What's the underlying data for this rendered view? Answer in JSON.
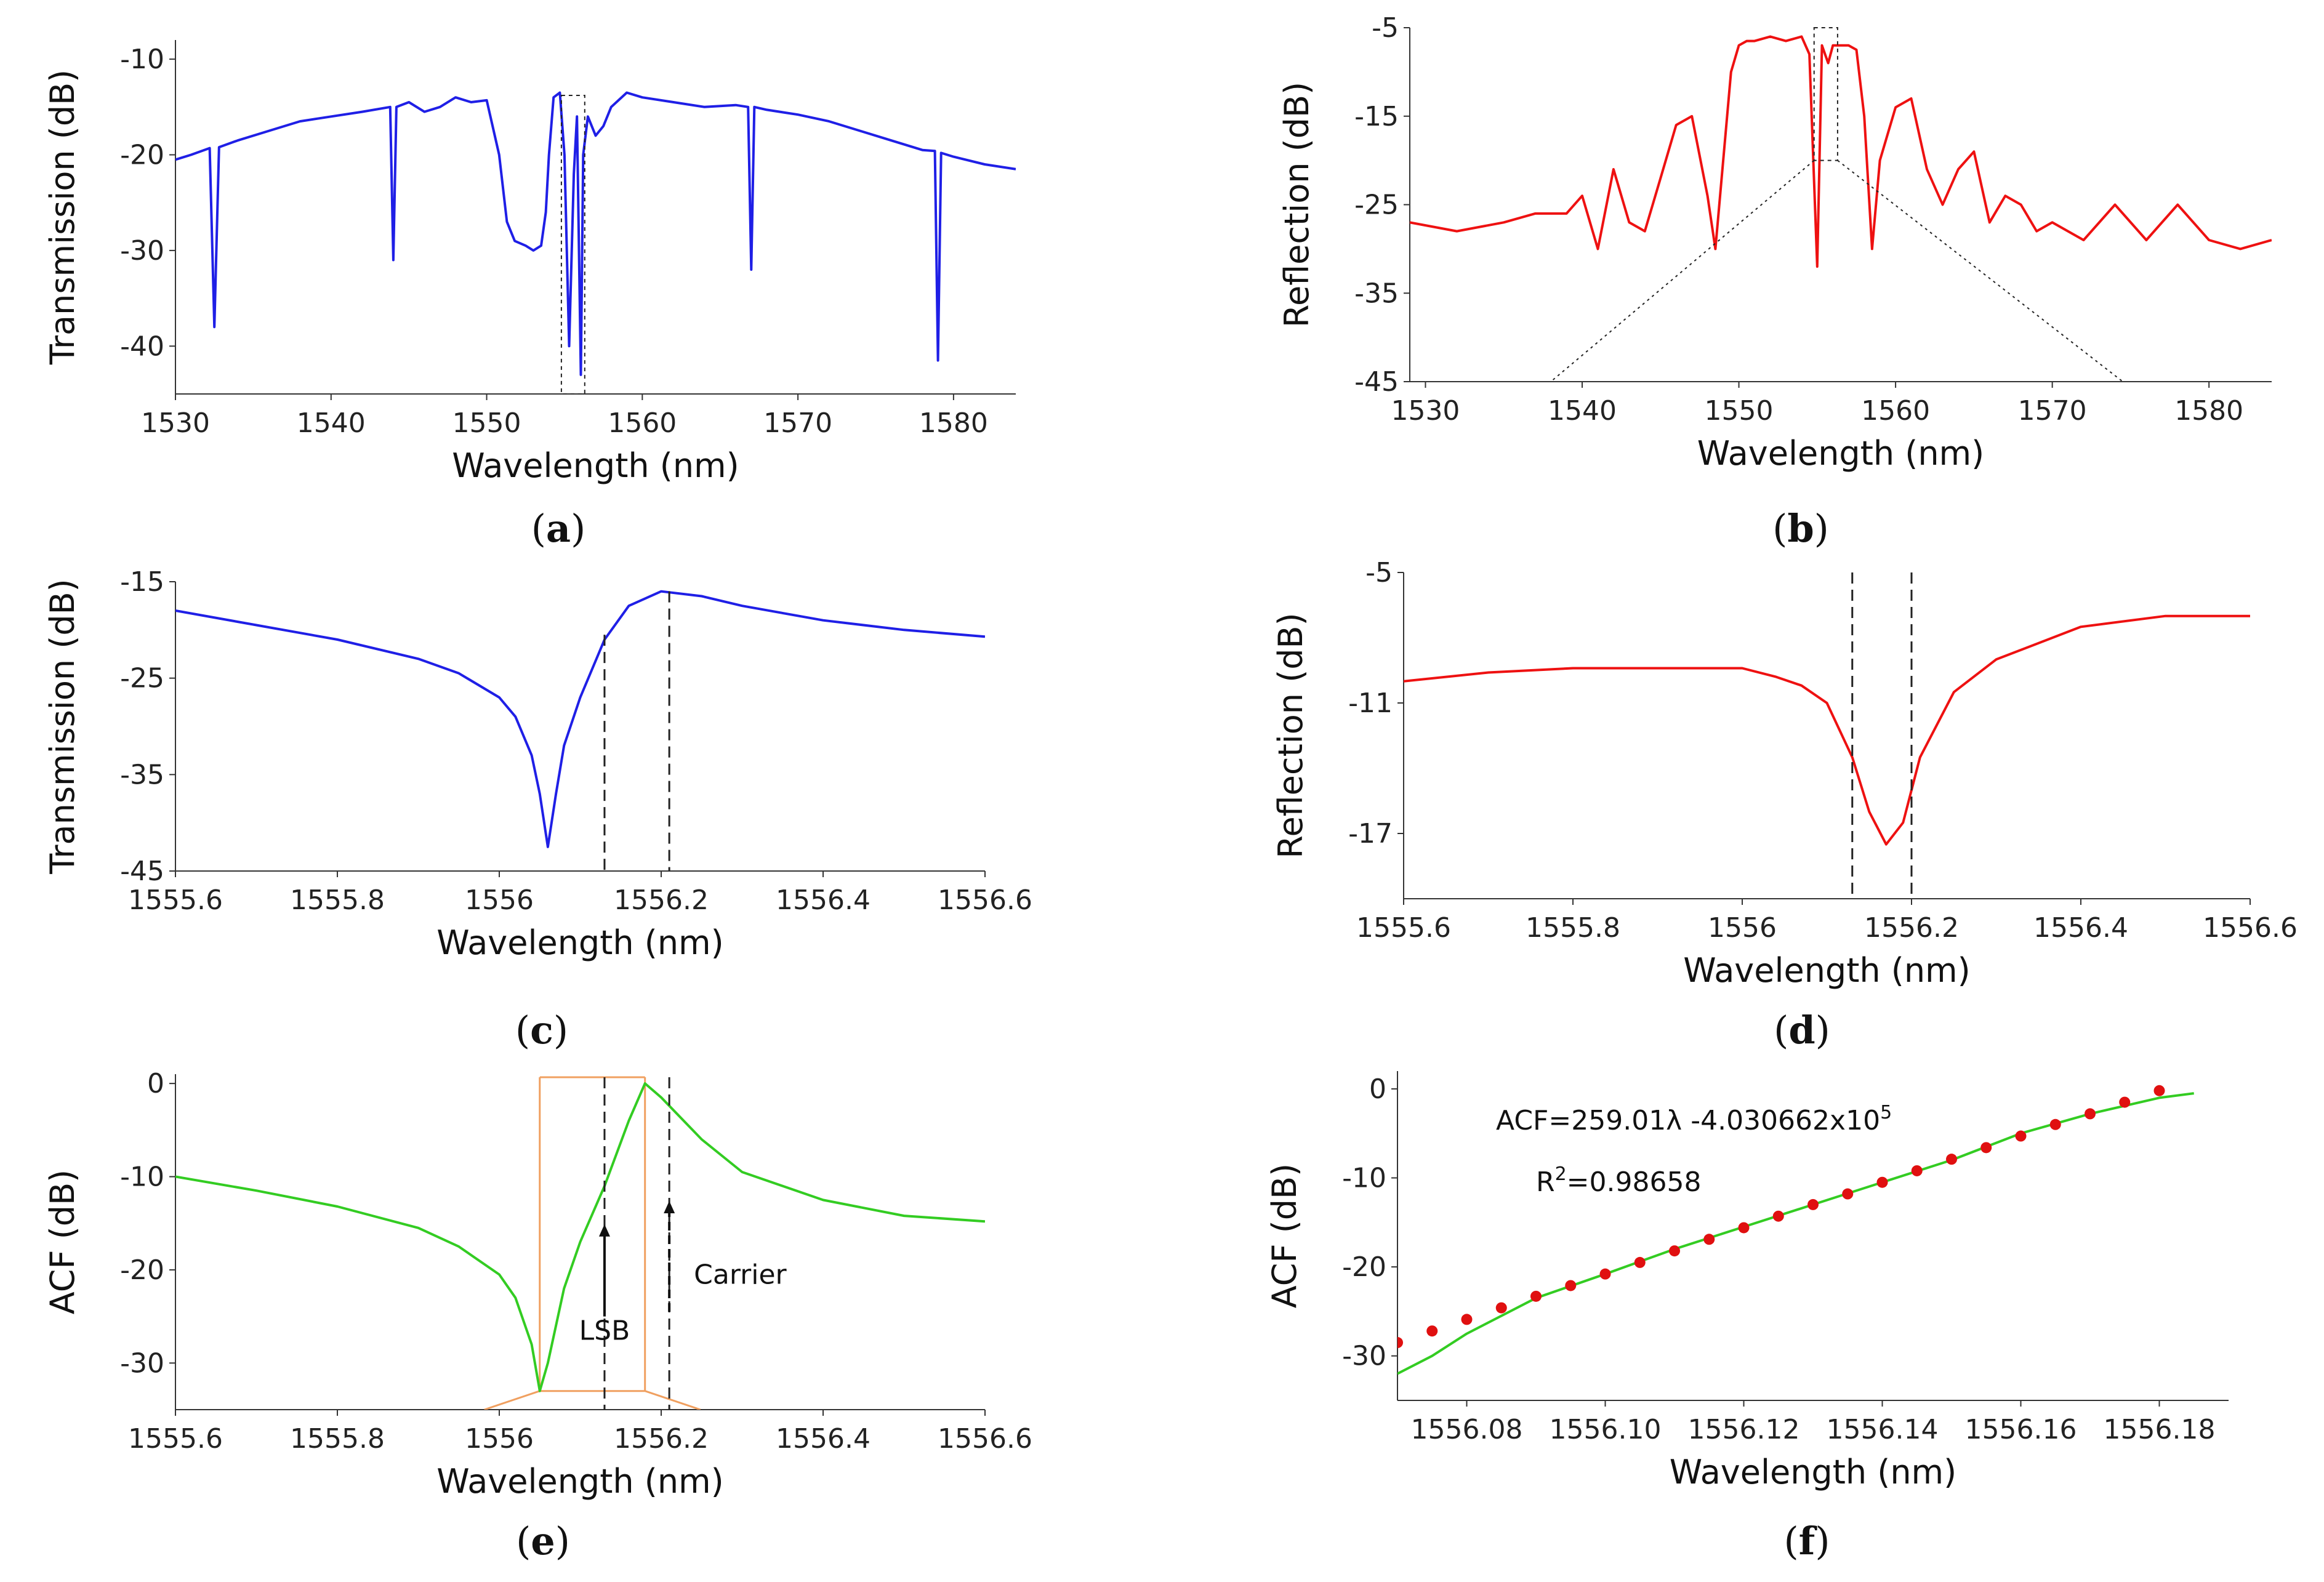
{
  "figure": {
    "colors": {
      "blue": "#1f1fe6",
      "red": "#ee1111",
      "green": "#33cc22",
      "orange": "#f0a060",
      "fitDot": "#e01010"
    }
  },
  "chart_data": [
    {
      "id": "a",
      "type": "line",
      "caption": "a",
      "xlabel": "Wavelength (nm)",
      "ylabel": "Transmission (dB)",
      "xlim": [
        1530,
        1584
      ],
      "ylim": [
        -45,
        -8
      ],
      "xticks": [
        1530,
        1540,
        1550,
        1560,
        1570,
        1580
      ],
      "yticks": [
        -10,
        -20,
        -30,
        -40
      ],
      "color": "blue",
      "series": [
        {
          "name": "Transmission",
          "x": [
            1530,
            1531,
            1532.2,
            1532.5,
            1532.8,
            1534,
            1536,
            1538,
            1540,
            1542,
            1543.8,
            1544,
            1544.2,
            1545,
            1546,
            1547,
            1548,
            1549,
            1550,
            1550.8,
            1551.3,
            1551.8,
            1552.5,
            1553,
            1553.5,
            1553.8,
            1554,
            1554.3,
            1554.7,
            1555,
            1555.3,
            1555.6,
            1555.8,
            1556.05,
            1556.2,
            1556.5,
            1557,
            1557.5,
            1558,
            1559,
            1560,
            1562,
            1564,
            1566,
            1566.8,
            1567,
            1567.2,
            1568,
            1570,
            1572,
            1574,
            1576,
            1578,
            1578.8,
            1579,
            1579.2,
            1580,
            1582,
            1584
          ],
          "y": [
            -20.5,
            -20,
            -19.3,
            -38,
            -19.2,
            -18.5,
            -17.5,
            -16.5,
            -16,
            -15.5,
            -15,
            -31,
            -15,
            -14.5,
            -15.5,
            -15,
            -14,
            -14.5,
            -14.3,
            -20,
            -27,
            -29,
            -29.5,
            -30,
            -29.5,
            -26,
            -20,
            -14,
            -13.5,
            -20,
            -40,
            -22,
            -16,
            -43,
            -20,
            -16,
            -18,
            -17,
            -15,
            -13.5,
            -14,
            -14.5,
            -15,
            -14.8,
            -15,
            -32,
            -15,
            -15.3,
            -15.8,
            -16.5,
            -17.5,
            -18.5,
            -19.5,
            -19.6,
            -41.5,
            -19.8,
            -20.2,
            -21,
            -21.5
          ]
        }
      ],
      "annotations": {
        "zoomBox": [
          1554.8,
          1556.3
        ]
      }
    },
    {
      "id": "b",
      "type": "line",
      "caption": "b",
      "xlabel": "Wavelength (nm)",
      "ylabel": "Reflection (dB)",
      "xlim": [
        1529,
        1584
      ],
      "ylim": [
        -45,
        -5
      ],
      "xticks": [
        1530,
        1540,
        1550,
        1560,
        1570,
        1580
      ],
      "yticks": [
        -5,
        -15,
        -25,
        -35,
        -45
      ],
      "color": "red",
      "series": [
        {
          "name": "Reflection",
          "x": [
            1529,
            1532,
            1535,
            1537,
            1539,
            1540,
            1541,
            1542,
            1543,
            1544,
            1545,
            1546,
            1547,
            1548,
            1548.5,
            1549,
            1549.5,
            1550,
            1550.5,
            1551,
            1552,
            1553,
            1554,
            1554.5,
            1555,
            1555.3,
            1555.7,
            1556,
            1557,
            1557.5,
            1558,
            1558.5,
            1559,
            1560,
            1561,
            1562,
            1563,
            1564,
            1565,
            1566,
            1567,
            1568,
            1569,
            1570,
            1572,
            1574,
            1576,
            1578,
            1580,
            1582,
            1584
          ],
          "y": [
            -27,
            -28,
            -27,
            -26,
            -26,
            -24,
            -30,
            -21,
            -27,
            -28,
            -22,
            -16,
            -15,
            -24,
            -30,
            -20,
            -10,
            -7,
            -6.5,
            -6.5,
            -6,
            -6.5,
            -6,
            -8,
            -32,
            -7,
            -9,
            -7,
            -7,
            -7.5,
            -15,
            -30,
            -20,
            -14,
            -13,
            -21,
            -25,
            -21,
            -19,
            -27,
            -24,
            -25,
            -28,
            -27,
            -29,
            -25,
            -29,
            -25,
            -29,
            -30,
            -29
          ]
        }
      ],
      "annotations": {
        "zoomBox": [
          1554.8,
          1556.3
        ]
      }
    },
    {
      "id": "c",
      "type": "line",
      "caption": "c",
      "xlabel": "Wavelength (nm)",
      "ylabel": "Transmission (dB)",
      "xlim": [
        1555.6,
        1556.6
      ],
      "ylim": [
        -45,
        -15
      ],
      "xticks": [
        1555.6,
        1555.8,
        1556.0,
        1556.2,
        1556.4,
        1556.6
      ],
      "yticks": [
        -15,
        -25,
        -35,
        -45
      ],
      "color": "blue",
      "series": [
        {
          "name": "Transmission",
          "x": [
            1555.6,
            1555.7,
            1555.8,
            1555.9,
            1555.95,
            1556.0,
            1556.02,
            1556.04,
            1556.05,
            1556.06,
            1556.07,
            1556.08,
            1556.1,
            1556.13,
            1556.16,
            1556.2,
            1556.25,
            1556.3,
            1556.4,
            1556.5,
            1556.6
          ],
          "y": [
            -18,
            -19.5,
            -21,
            -23,
            -24.5,
            -27,
            -29,
            -33,
            -37,
            -42.5,
            -37,
            -32,
            -27,
            -21,
            -17.5,
            -16,
            -16.5,
            -17.5,
            -19,
            -20,
            -20.7
          ]
        }
      ],
      "annotations": {
        "dashed": [
          1556.13,
          1556.21
        ]
      }
    },
    {
      "id": "d",
      "type": "line",
      "caption": "d",
      "xlabel": "Wavelength (nm)",
      "ylabel": "Reflection (dB)",
      "xlim": [
        1555.6,
        1556.6
      ],
      "ylim": [
        -20,
        -5
      ],
      "xticks": [
        1555.6,
        1555.8,
        1556.0,
        1556.2,
        1556.4,
        1556.6
      ],
      "yticks": [
        -5,
        -11,
        -17
      ],
      "color": "red",
      "series": [
        {
          "name": "Reflection",
          "x": [
            1555.6,
            1555.7,
            1555.8,
            1555.9,
            1556.0,
            1556.04,
            1556.07,
            1556.1,
            1556.13,
            1556.15,
            1556.17,
            1556.19,
            1556.21,
            1556.25,
            1556.3,
            1556.4,
            1556.5,
            1556.6
          ],
          "y": [
            -10,
            -9.6,
            -9.4,
            -9.4,
            -9.4,
            -9.8,
            -10.2,
            -11,
            -13.5,
            -16,
            -17.5,
            -16.5,
            -13.5,
            -10.5,
            -9,
            -7.5,
            -7,
            -7
          ]
        }
      ],
      "annotations": {
        "dashed": [
          1556.13,
          1556.2
        ]
      }
    },
    {
      "id": "e",
      "type": "line",
      "caption": "e",
      "xlabel": "Wavelength (nm)",
      "ylabel": "ACF (dB)",
      "xlim": [
        1555.6,
        1556.6
      ],
      "ylim": [
        -35,
        1
      ],
      "xticks": [
        1555.6,
        1555.8,
        1556.0,
        1556.2,
        1556.4,
        1556.6
      ],
      "yticks": [
        0,
        -10,
        -20,
        -30
      ],
      "color": "green",
      "series": [
        {
          "name": "ACF",
          "x": [
            1555.6,
            1555.7,
            1555.8,
            1555.9,
            1555.95,
            1556.0,
            1556.02,
            1556.04,
            1556.05,
            1556.06,
            1556.08,
            1556.1,
            1556.13,
            1556.16,
            1556.18,
            1556.2,
            1556.25,
            1556.3,
            1556.4,
            1556.5,
            1556.6
          ],
          "y": [
            -10,
            -11.5,
            -13.2,
            -15.5,
            -17.5,
            -20.5,
            -23,
            -28,
            -33,
            -30,
            -22,
            -17,
            -11,
            -4,
            0,
            -1.5,
            -6,
            -9.5,
            -12.5,
            -14.2,
            -14.8
          ]
        }
      ],
      "annotations": {
        "dashed": [
          1556.13,
          1556.21
        ],
        "window": [
          1556.05,
          1556.18
        ],
        "lsb_label": "LSB",
        "carrier_label": "Carrier"
      }
    },
    {
      "id": "f",
      "type": "scatter",
      "caption": "f",
      "xlabel": "Wavelength (nm)",
      "ylabel": "ACF (dB)",
      "xlim": [
        1556.07,
        1556.19
      ],
      "ylim": [
        -35,
        2
      ],
      "xticks": [
        1556.08,
        1556.1,
        1556.12,
        1556.14,
        1556.16,
        1556.18
      ],
      "xtick_labels": [
        "1556.08",
        "1556.10",
        "1556.12",
        "1556.14",
        "1556.16",
        "1556.18"
      ],
      "yticks": [
        0,
        -10,
        -20,
        -30
      ],
      "color": "green",
      "series": [
        {
          "name": "ACF",
          "x": [
            1556.07,
            1556.075,
            1556.08,
            1556.085,
            1556.09,
            1556.1,
            1556.11,
            1556.12,
            1556.13,
            1556.14,
            1556.15,
            1556.16,
            1556.17,
            1556.18,
            1556.185
          ],
          "y": [
            -32,
            -30,
            -27.5,
            -25.5,
            -23.5,
            -20.8,
            -18,
            -15.5,
            -13,
            -10.5,
            -8,
            -5,
            -2.8,
            -1,
            -0.5
          ]
        },
        {
          "name": "Linear fit",
          "x": [
            1556.07,
            1556.075,
            1556.08,
            1556.085,
            1556.09,
            1556.095,
            1556.1,
            1556.105,
            1556.11,
            1556.115,
            1556.12,
            1556.125,
            1556.13,
            1556.135,
            1556.14,
            1556.145,
            1556.15,
            1556.155,
            1556.16,
            1556.165,
            1556.17,
            1556.175,
            1556.18
          ],
          "y": [
            -28.5,
            -27.2,
            -25.9,
            -24.6,
            -23.3,
            -22.1,
            -20.8,
            -19.5,
            -18.2,
            -16.9,
            -15.6,
            -14.3,
            -13,
            -11.8,
            -10.5,
            -9.2,
            -7.9,
            -6.6,
            -5.3,
            -4,
            -2.8,
            -1.5,
            -0.2
          ]
        }
      ],
      "annotations": {
        "equation_main": "ACF=259.01λ -4.030662x10",
        "equation_exp": "5",
        "r2_main": "R",
        "r2_sup": "2",
        "r2_value": "=0.98658"
      }
    }
  ]
}
